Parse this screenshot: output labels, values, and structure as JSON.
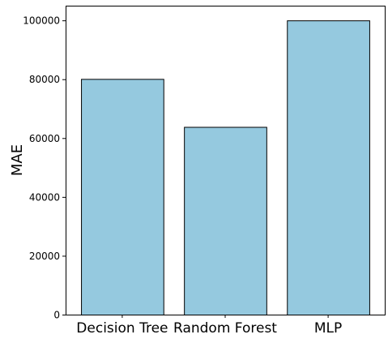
{
  "chart_data": {
    "type": "bar",
    "title": "",
    "xlabel": "",
    "ylabel": "MAE",
    "categories": [
      "Decision Tree",
      "Random Forest",
      "MLP"
    ],
    "values": [
      80100,
      63800,
      100000
    ],
    "ylim": [
      0,
      105000
    ],
    "yticks": [
      0,
      20000,
      40000,
      60000,
      80000,
      100000
    ],
    "ytick_labels": [
      "0",
      "20000",
      "40000",
      "60000",
      "80000",
      "100000"
    ],
    "bar_color": "#95c9df",
    "bar_edge_color": "#000000",
    "grid": false,
    "legend": "none"
  }
}
